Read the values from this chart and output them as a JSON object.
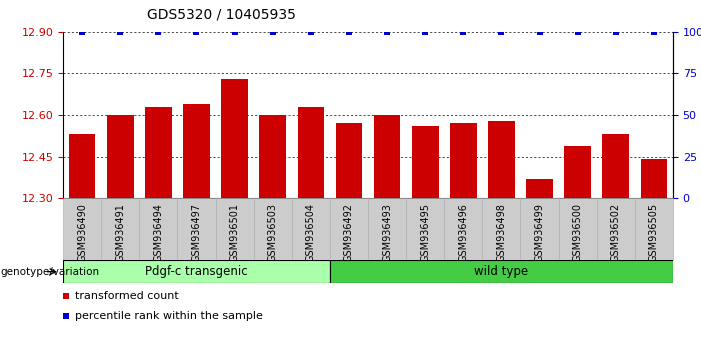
{
  "title": "GDS5320 / 10405935",
  "categories": [
    "GSM936490",
    "GSM936491",
    "GSM936494",
    "GSM936497",
    "GSM936501",
    "GSM936503",
    "GSM936504",
    "GSM936492",
    "GSM936493",
    "GSM936495",
    "GSM936496",
    "GSM936498",
    "GSM936499",
    "GSM936500",
    "GSM936502",
    "GSM936505"
  ],
  "bar_values": [
    12.53,
    12.6,
    12.63,
    12.64,
    12.73,
    12.6,
    12.63,
    12.57,
    12.6,
    12.56,
    12.57,
    12.58,
    12.37,
    12.49,
    12.53,
    12.44
  ],
  "percentile_values": [
    100,
    100,
    100,
    100,
    100,
    100,
    100,
    100,
    100,
    100,
    100,
    100,
    100,
    100,
    100,
    100
  ],
  "ylim_left": [
    12.3,
    12.9
  ],
  "ylim_right": [
    0,
    100
  ],
  "yticks_left": [
    12.3,
    12.45,
    12.6,
    12.75,
    12.9
  ],
  "yticks_right": [
    0,
    25,
    50,
    75,
    100
  ],
  "bar_color": "#cc0000",
  "percentile_color": "#0000cc",
  "group1_label": "Pdgf-c transgenic",
  "group2_label": "wild type",
  "group1_count": 7,
  "group2_count": 9,
  "group1_color": "#aaffaa",
  "group2_color": "#44cc44",
  "xlabel_left": "genotype/variation",
  "legend_bar": "transformed count",
  "legend_percentile": "percentile rank within the sample",
  "tick_area_color": "#cccccc",
  "title_fontsize": 10,
  "tick_fontsize": 7,
  "bar_width": 0.7
}
